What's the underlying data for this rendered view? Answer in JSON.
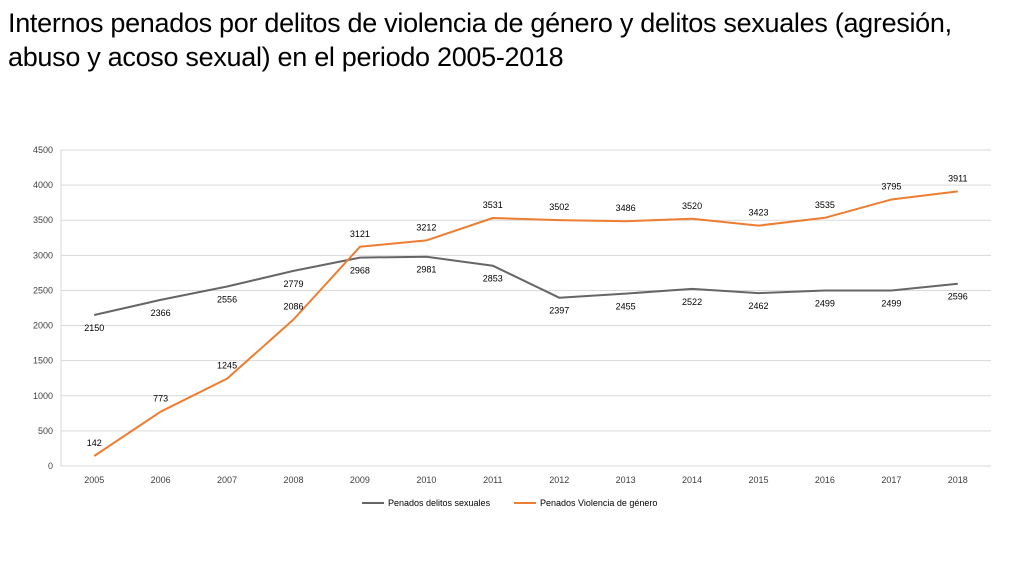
{
  "title": "Internos penados por delitos de violencia de género y delitos sexuales (agresión, abuso y acoso sexual) en el periodo 2005-2018",
  "chart_data": {
    "type": "line",
    "title": "Internos penados por delitos de violencia de género y delitos sexuales (agresión, abuso y acoso sexual) en el periodo 2005-2018",
    "xlabel": "",
    "ylabel": "",
    "categories": [
      "2005",
      "2006",
      "2007",
      "2008",
      "2009",
      "2010",
      "2011",
      "2012",
      "2013",
      "2014",
      "2015",
      "2016",
      "2017",
      "2018"
    ],
    "ylim": [
      0,
      4500
    ],
    "yticks": [
      0,
      500,
      1000,
      1500,
      2000,
      2500,
      3000,
      3500,
      4000,
      4500
    ],
    "grid": true,
    "legend_position": "bottom",
    "series": [
      {
        "name": "Penados delitos sexuales",
        "color": "#666666",
        "label_position": "below",
        "values": [
          2150,
          2366,
          2556,
          2779,
          2968,
          2981,
          2853,
          2397,
          2455,
          2522,
          2462,
          2499,
          2499,
          2596
        ]
      },
      {
        "name": "Penados Violencia de género",
        "color": "#ED7D31",
        "label_position": "above",
        "values": [
          142,
          773,
          1245,
          2086,
          3121,
          3212,
          3531,
          3502,
          3486,
          3520,
          3423,
          3535,
          3795,
          3911
        ]
      }
    ]
  }
}
